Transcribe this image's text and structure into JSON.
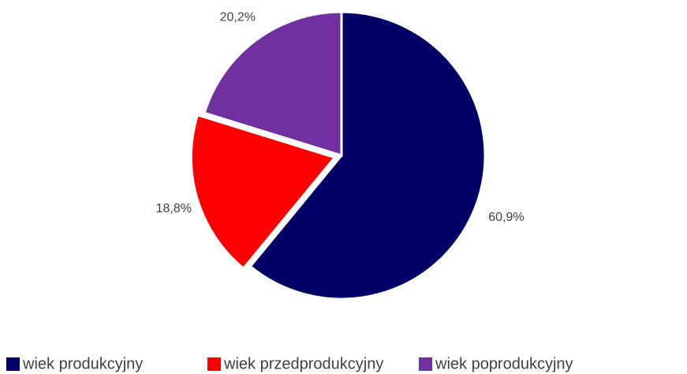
{
  "chart_data": {
    "type": "pie",
    "categories": [
      "wiek produkcyjny",
      "wiek przedprodukcyjny",
      "wiek poprodukcyjny"
    ],
    "values": [
      60.9,
      18.8,
      20.2
    ],
    "value_labels": [
      "60,9%",
      "18,8%",
      "20,2%"
    ],
    "colors": [
      "#000066",
      "#ff0000",
      "#7030a0"
    ],
    "legend": "bottom"
  }
}
